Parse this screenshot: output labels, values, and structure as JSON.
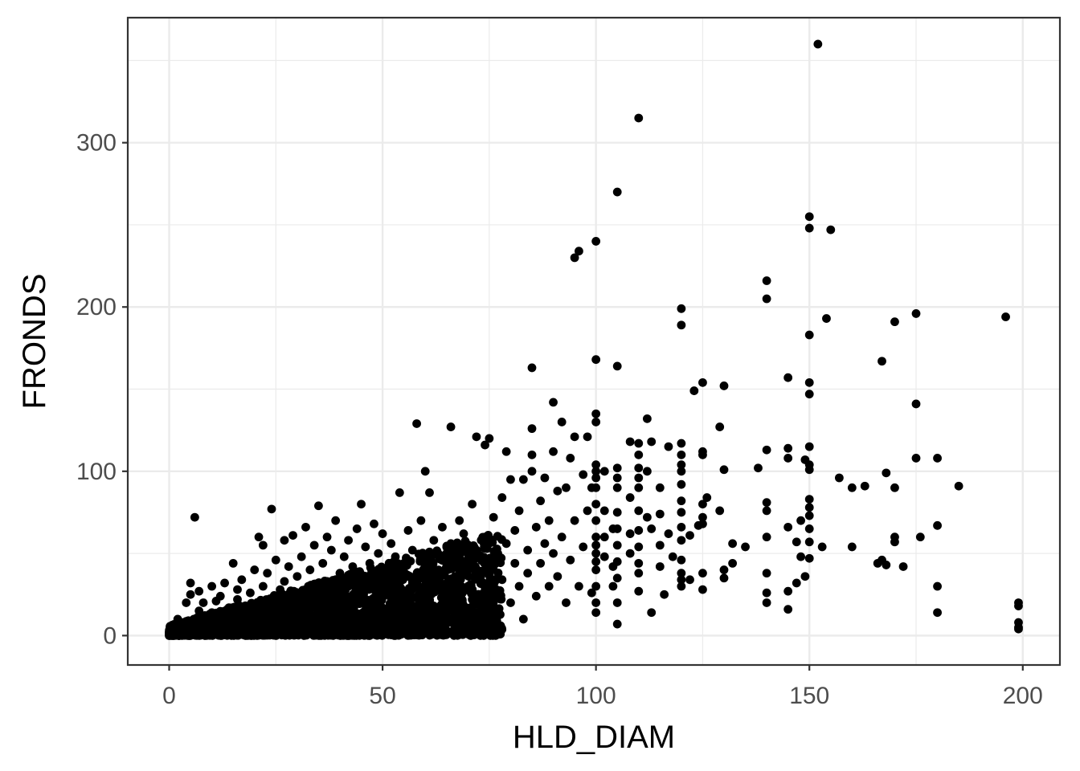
{
  "chart_data": {
    "type": "scatter",
    "title": "",
    "xlabel": "HLD_DIAM",
    "ylabel": "FRONDS",
    "xlim": [
      -9.7,
      208.7
    ],
    "ylim": [
      -17.9,
      376.1
    ],
    "x_ticks": [
      0,
      50,
      100,
      150,
      200
    ],
    "x_tick_labels": [
      "0",
      "50",
      "100",
      "150",
      "200"
    ],
    "y_ticks": [
      0,
      100,
      200,
      300
    ],
    "y_tick_labels": [
      "0",
      "100",
      "200",
      "300"
    ],
    "grid": true,
    "legend": "none",
    "point_color": "#000000",
    "points": [
      [
        0,
        0
      ],
      [
        0,
        1
      ],
      [
        1,
        0
      ],
      [
        1,
        2
      ],
      [
        1,
        5
      ],
      [
        2,
        3
      ],
      [
        2,
        10
      ],
      [
        3,
        1
      ],
      [
        3,
        6
      ],
      [
        4,
        2
      ],
      [
        4,
        20
      ],
      [
        5,
        8
      ],
      [
        5,
        32
      ],
      [
        5,
        25
      ],
      [
        6,
        72
      ],
      [
        6,
        4
      ],
      [
        7,
        15
      ],
      [
        7,
        27
      ],
      [
        8,
        6
      ],
      [
        8,
        20
      ],
      [
        9,
        11
      ],
      [
        9,
        3
      ],
      [
        10,
        30
      ],
      [
        10,
        14
      ],
      [
        11,
        6
      ],
      [
        11,
        21
      ],
      [
        12,
        9
      ],
      [
        12,
        24
      ],
      [
        13,
        3
      ],
      [
        13,
        32
      ],
      [
        14,
        17
      ],
      [
        14,
        12
      ],
      [
        15,
        44
      ],
      [
        15,
        6
      ],
      [
        16,
        22
      ],
      [
        16,
        28
      ],
      [
        17,
        10
      ],
      [
        17,
        34
      ],
      [
        18,
        5
      ],
      [
        18,
        16
      ],
      [
        19,
        26
      ],
      [
        19,
        12
      ],
      [
        20,
        40
      ],
      [
        20,
        8
      ],
      [
        21,
        60
      ],
      [
        21,
        18
      ],
      [
        22,
        30
      ],
      [
        22,
        55
      ],
      [
        23,
        13
      ],
      [
        23,
        38
      ],
      [
        24,
        77
      ],
      [
        24,
        22
      ],
      [
        25,
        6
      ],
      [
        25,
        46
      ],
      [
        26,
        28
      ],
      [
        26,
        15
      ],
      [
        27,
        58
      ],
      [
        27,
        33
      ],
      [
        28,
        10
      ],
      [
        28,
        42
      ],
      [
        29,
        20
      ],
      [
        29,
        61
      ],
      [
        30,
        36
      ],
      [
        30,
        8
      ],
      [
        31,
        48
      ],
      [
        31,
        25
      ],
      [
        32,
        16
      ],
      [
        32,
        66
      ],
      [
        33,
        40
      ],
      [
        33,
        12
      ],
      [
        34,
        55
      ],
      [
        34,
        30
      ],
      [
        35,
        79
      ],
      [
        35,
        20
      ],
      [
        36,
        44
      ],
      [
        36,
        10
      ],
      [
        37,
        60
      ],
      [
        37,
        33
      ],
      [
        38,
        25
      ],
      [
        38,
        52
      ],
      [
        39,
        15
      ],
      [
        39,
        70
      ],
      [
        40,
        38
      ],
      [
        40,
        22
      ],
      [
        41,
        48
      ],
      [
        41,
        8
      ],
      [
        42,
        30
      ],
      [
        42,
        58
      ],
      [
        43,
        18
      ],
      [
        43,
        42
      ],
      [
        44,
        65
      ],
      [
        44,
        26
      ],
      [
        45,
        80
      ],
      [
        45,
        12
      ],
      [
        46,
        36
      ],
      [
        46,
        54
      ],
      [
        47,
        20
      ],
      [
        47,
        44
      ],
      [
        48,
        68
      ],
      [
        48,
        30
      ],
      [
        49,
        10
      ],
      [
        49,
        50
      ],
      [
        50,
        62
      ],
      [
        50,
        24
      ],
      [
        51,
        40
      ],
      [
        51,
        16
      ],
      [
        52,
        56
      ],
      [
        52,
        34
      ],
      [
        53,
        28
      ],
      [
        53,
        48
      ],
      [
        54,
        87
      ],
      [
        54,
        6
      ],
      [
        55,
        44
      ],
      [
        55,
        20
      ],
      [
        56,
        64
      ],
      [
        56,
        36
      ],
      [
        57,
        52
      ],
      [
        57,
        14
      ],
      [
        58,
        129
      ],
      [
        58,
        30
      ],
      [
        59,
        46
      ],
      [
        59,
        70
      ],
      [
        60,
        100
      ],
      [
        60,
        24
      ],
      [
        61,
        87
      ],
      [
        61,
        40
      ],
      [
        62,
        58
      ],
      [
        62,
        18
      ],
      [
        63,
        34
      ],
      [
        63,
        50
      ],
      [
        64,
        66
      ],
      [
        64,
        10
      ],
      [
        65,
        44
      ],
      [
        65,
        28
      ],
      [
        66,
        127
      ],
      [
        66,
        56
      ],
      [
        67,
        36
      ],
      [
        67,
        20
      ],
      [
        68,
        48
      ],
      [
        68,
        70
      ],
      [
        69,
        14
      ],
      [
        69,
        62
      ],
      [
        70,
        30
      ],
      [
        70,
        44
      ],
      [
        71,
        80
      ],
      [
        71,
        22
      ],
      [
        72,
        121
      ],
      [
        72,
        52
      ],
      [
        73,
        36
      ],
      [
        73,
        8
      ],
      [
        74,
        116
      ],
      [
        74,
        60
      ],
      [
        75,
        120
      ],
      [
        75,
        40
      ],
      [
        76,
        26
      ],
      [
        76,
        72
      ],
      [
        77,
        50
      ],
      [
        77,
        12
      ],
      [
        78,
        84
      ],
      [
        78,
        34
      ],
      [
        79,
        112
      ],
      [
        79,
        56
      ],
      [
        80,
        95
      ],
      [
        80,
        20
      ],
      [
        81,
        44
      ],
      [
        81,
        64
      ],
      [
        82,
        30
      ],
      [
        82,
        76
      ],
      [
        83,
        95
      ],
      [
        83,
        10
      ],
      [
        84,
        52
      ],
      [
        84,
        38
      ],
      [
        85,
        163
      ],
      [
        85,
        126
      ],
      [
        85,
        110
      ],
      [
        85,
        100
      ],
      [
        86,
        66
      ],
      [
        86,
        24
      ],
      [
        87,
        44
      ],
      [
        87,
        82
      ],
      [
        88,
        96
      ],
      [
        88,
        56
      ],
      [
        89,
        30
      ],
      [
        89,
        70
      ],
      [
        90,
        142
      ],
      [
        90,
        112
      ],
      [
        90,
        50
      ],
      [
        91,
        88
      ],
      [
        91,
        36
      ],
      [
        92,
        130
      ],
      [
        92,
        60
      ],
      [
        93,
        90
      ],
      [
        93,
        20
      ],
      [
        94,
        108
      ],
      [
        94,
        46
      ],
      [
        95,
        230
      ],
      [
        95,
        121
      ],
      [
        95,
        70
      ],
      [
        96,
        234
      ],
      [
        96,
        30
      ],
      [
        97,
        98
      ],
      [
        97,
        54
      ],
      [
        98,
        121
      ],
      [
        98,
        76
      ],
      [
        99,
        90
      ],
      [
        99,
        26
      ],
      [
        100,
        240
      ],
      [
        100,
        168
      ],
      [
        100,
        135
      ],
      [
        100,
        130
      ],
      [
        100,
        104
      ],
      [
        100,
        100
      ],
      [
        100,
        96
      ],
      [
        100,
        90
      ],
      [
        100,
        80
      ],
      [
        100,
        70
      ],
      [
        100,
        60
      ],
      [
        100,
        55
      ],
      [
        100,
        50
      ],
      [
        100,
        45
      ],
      [
        100,
        40
      ],
      [
        100,
        30
      ],
      [
        100,
        20
      ],
      [
        100,
        14
      ],
      [
        102,
        100
      ],
      [
        102,
        76
      ],
      [
        102,
        60
      ],
      [
        102,
        48
      ],
      [
        104,
        30
      ],
      [
        104,
        65
      ],
      [
        104,
        42
      ],
      [
        105,
        270
      ],
      [
        105,
        164
      ],
      [
        105,
        102
      ],
      [
        105,
        96
      ],
      [
        105,
        90
      ],
      [
        105,
        75
      ],
      [
        105,
        65
      ],
      [
        105,
        55
      ],
      [
        105,
        45
      ],
      [
        105,
        35
      ],
      [
        105,
        20
      ],
      [
        105,
        7
      ],
      [
        108,
        118
      ],
      [
        108,
        84
      ],
      [
        108,
        62
      ],
      [
        108,
        50
      ],
      [
        110,
        315
      ],
      [
        110,
        117
      ],
      [
        110,
        110
      ],
      [
        110,
        102
      ],
      [
        110,
        96
      ],
      [
        110,
        90
      ],
      [
        110,
        76
      ],
      [
        110,
        64
      ],
      [
        110,
        54
      ],
      [
        110,
        44
      ],
      [
        110,
        38
      ],
      [
        110,
        27
      ],
      [
        112,
        132
      ],
      [
        112,
        100
      ],
      [
        112,
        72
      ],
      [
        113,
        118
      ],
      [
        113,
        65
      ],
      [
        113,
        14
      ],
      [
        115,
        90
      ],
      [
        115,
        74
      ],
      [
        115,
        55
      ],
      [
        115,
        42
      ],
      [
        116,
        25
      ],
      [
        117,
        115
      ],
      [
        117,
        62
      ],
      [
        118,
        48
      ],
      [
        120,
        199
      ],
      [
        120,
        189
      ],
      [
        120,
        117
      ],
      [
        120,
        110
      ],
      [
        120,
        104
      ],
      [
        120,
        100
      ],
      [
        120,
        92
      ],
      [
        120,
        82
      ],
      [
        120,
        75
      ],
      [
        120,
        66
      ],
      [
        120,
        58
      ],
      [
        120,
        46
      ],
      [
        120,
        38
      ],
      [
        120,
        34
      ],
      [
        120,
        30
      ],
      [
        122,
        61
      ],
      [
        122,
        34
      ],
      [
        123,
        149
      ],
      [
        124,
        67
      ],
      [
        125,
        154
      ],
      [
        125,
        112
      ],
      [
        125,
        110
      ],
      [
        125,
        80
      ],
      [
        125,
        72
      ],
      [
        125,
        68
      ],
      [
        125,
        38
      ],
      [
        125,
        28
      ],
      [
        126,
        84
      ],
      [
        129,
        127
      ],
      [
        129,
        76
      ],
      [
        130,
        152
      ],
      [
        130,
        101
      ],
      [
        130,
        40
      ],
      [
        130,
        35
      ],
      [
        132,
        56
      ],
      [
        132,
        44
      ],
      [
        135,
        54
      ],
      [
        138,
        102
      ],
      [
        140,
        216
      ],
      [
        140,
        205
      ],
      [
        140,
        113
      ],
      [
        140,
        81
      ],
      [
        140,
        76
      ],
      [
        140,
        60
      ],
      [
        140,
        38
      ],
      [
        140,
        26
      ],
      [
        140,
        20
      ],
      [
        145,
        157
      ],
      [
        145,
        114
      ],
      [
        145,
        108
      ],
      [
        145,
        66
      ],
      [
        145,
        27
      ],
      [
        145,
        16
      ],
      [
        147,
        57
      ],
      [
        147,
        32
      ],
      [
        148,
        70
      ],
      [
        148,
        48
      ],
      [
        149,
        107
      ],
      [
        149,
        36
      ],
      [
        150,
        255
      ],
      [
        150,
        248
      ],
      [
        150,
        183
      ],
      [
        150,
        154
      ],
      [
        150,
        147
      ],
      [
        150,
        115
      ],
      [
        150,
        104
      ],
      [
        150,
        101
      ],
      [
        150,
        83
      ],
      [
        150,
        78
      ],
      [
        150,
        73
      ],
      [
        150,
        65
      ],
      [
        150,
        57
      ],
      [
        150,
        47
      ],
      [
        152,
        360
      ],
      [
        153,
        54
      ],
      [
        154,
        193
      ],
      [
        155,
        247
      ],
      [
        157,
        96
      ],
      [
        160,
        90
      ],
      [
        160,
        54
      ],
      [
        163,
        91
      ],
      [
        166,
        44
      ],
      [
        167,
        167
      ],
      [
        167,
        46
      ],
      [
        168,
        43
      ],
      [
        168,
        99
      ],
      [
        170,
        191
      ],
      [
        170,
        90
      ],
      [
        170,
        60
      ],
      [
        170,
        57
      ],
      [
        172,
        42
      ],
      [
        175,
        196
      ],
      [
        175,
        141
      ],
      [
        175,
        108
      ],
      [
        176,
        60
      ],
      [
        180,
        108
      ],
      [
        180,
        67
      ],
      [
        180,
        30
      ],
      [
        180,
        14
      ],
      [
        185,
        91
      ],
      [
        196,
        194
      ],
      [
        199,
        20
      ],
      [
        199,
        18
      ],
      [
        199,
        8
      ],
      [
        199,
        5
      ],
      [
        199,
        4
      ]
    ]
  }
}
